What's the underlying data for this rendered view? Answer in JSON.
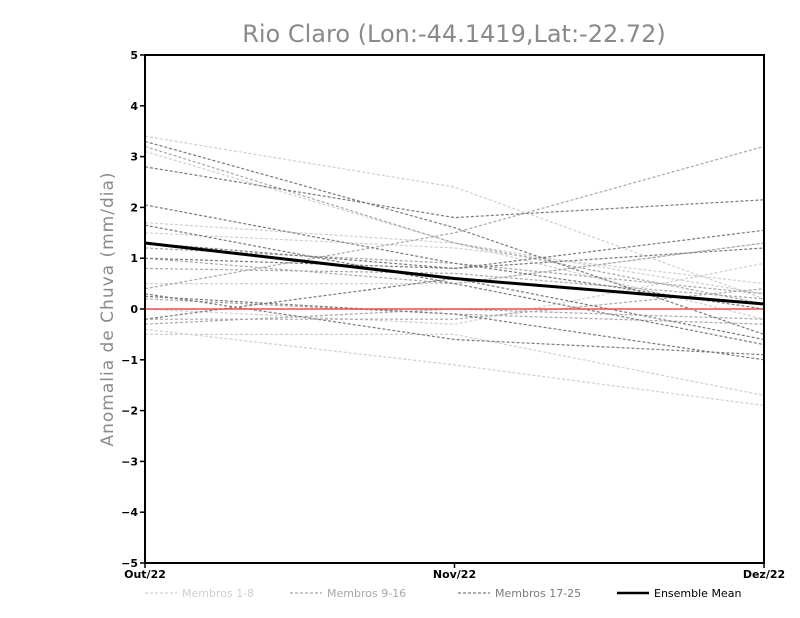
{
  "chart_data": {
    "type": "line",
    "title": "Rio Claro (Lon:-44.1419,Lat:-22.72)",
    "ylabel": "Anomalia de Chuva (mm/dia)",
    "categories": [
      "Out/22",
      "Nov/22",
      "Dez/22"
    ],
    "ylim": [
      -5,
      5
    ],
    "yticks": [
      "5",
      "4",
      "3",
      "2",
      "1",
      "0",
      "-1",
      "-2",
      "-3",
      "-4",
      "-5"
    ],
    "zero_line_color": "#e85050",
    "groups": [
      {
        "name": "Membros 1-8",
        "color": "#cfcfcf",
        "dashed": true,
        "series": [
          [
            3.4,
            2.4,
            0.2
          ],
          [
            3.1,
            1.3,
            -0.2
          ],
          [
            1.7,
            1.3,
            0.3
          ],
          [
            0.5,
            0.5,
            1.3
          ],
          [
            -0.4,
            -1.1,
            -1.9
          ],
          [
            -0.5,
            -0.5,
            -1.7
          ],
          [
            1.5,
            1.2,
            0.5
          ],
          [
            0.0,
            -0.3,
            0.9
          ]
        ]
      },
      {
        "name": "Membros 9-16",
        "color": "#a8a8a8",
        "dashed": true,
        "series": [
          [
            3.2,
            1.3,
            0.1
          ],
          [
            0.4,
            1.5,
            3.2
          ],
          [
            1.2,
            0.9,
            0.3
          ],
          [
            0.8,
            0.7,
            0.2
          ],
          [
            0.2,
            -0.1,
            -0.3
          ],
          [
            -0.2,
            -0.2,
            0.4
          ],
          [
            1.0,
            0.5,
            1.3
          ],
          [
            -0.3,
            0.0,
            -0.2
          ]
        ]
      },
      {
        "name": "Membros 17-25",
        "color": "#7a7a7a",
        "dashed": true,
        "series": [
          [
            3.3,
            1.6,
            -0.5
          ],
          [
            2.8,
            1.8,
            2.15
          ],
          [
            2.05,
            0.9,
            0.0
          ],
          [
            1.65,
            0.5,
            -0.7
          ],
          [
            1.3,
            0.8,
            1.55
          ],
          [
            0.3,
            -0.6,
            -0.9
          ],
          [
            0.25,
            -0.1,
            -1.0
          ],
          [
            -0.2,
            0.6,
            -0.6
          ],
          [
            1.0,
            0.8,
            1.2
          ]
        ]
      }
    ],
    "ensemble_mean": {
      "name": "Ensemble Mean",
      "color": "#000000",
      "values": [
        1.3,
        0.6,
        0.1
      ]
    },
    "legend": [
      {
        "label": "Membros 1-8",
        "color": "#cfcfcf",
        "dashed": true
      },
      {
        "label": "Membros 9-16",
        "color": "#a8a8a8",
        "dashed": true
      },
      {
        "label": "Membros 17-25",
        "color": "#7a7a7a",
        "dashed": true
      },
      {
        "label": "Ensemble Mean",
        "color": "#000000",
        "dashed": false
      }
    ]
  }
}
